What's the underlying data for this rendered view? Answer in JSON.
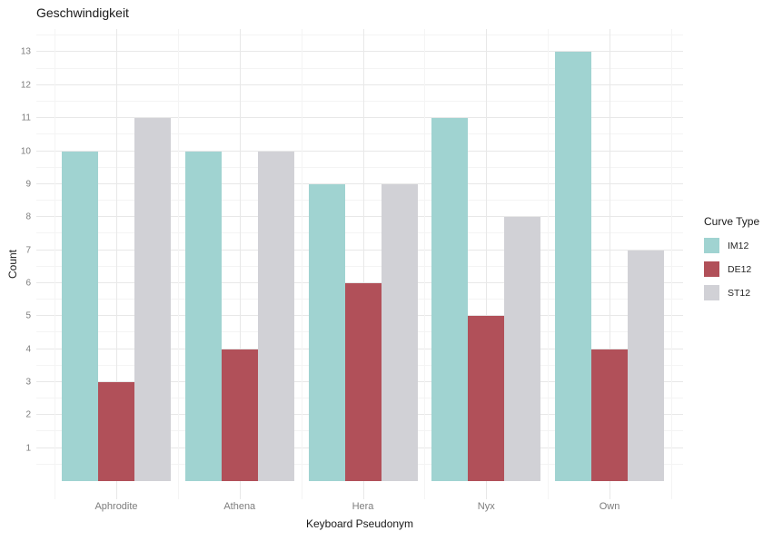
{
  "chart_data": {
    "type": "bar",
    "title": "Geschwindigkeit",
    "xlabel": "Keyboard Pseudonym",
    "ylabel": "Count",
    "legend_title": "Curve Type",
    "legend_position": "right",
    "categories": [
      "Aphrodite",
      "Athena",
      "Hera",
      "Nyx",
      "Own"
    ],
    "series": [
      {
        "name": "IM12",
        "color": "#A0D3D1",
        "values": [
          10,
          10,
          9,
          11,
          13
        ]
      },
      {
        "name": "DE12",
        "color": "#B15059",
        "values": [
          3,
          4,
          6,
          5,
          4
        ]
      },
      {
        "name": "ST12",
        "color": "#D1D1D6",
        "values": [
          11,
          10,
          9,
          8,
          7
        ]
      }
    ],
    "y_ticks": [
      1,
      2,
      3,
      4,
      5,
      6,
      7,
      8,
      9,
      10,
      11,
      12,
      13
    ],
    "ylim": [
      0,
      13.65
    ],
    "grid": {
      "major_color": "#e8e8e8",
      "minor_color": "#f4f4f4",
      "minor": true
    },
    "background_color": "#ffffff"
  }
}
